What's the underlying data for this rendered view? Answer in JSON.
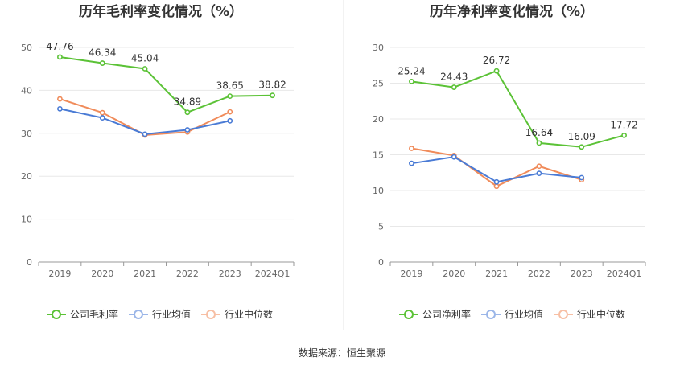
{
  "source_text": "数据来源：恒生聚源",
  "chart_data": [
    {
      "type": "line",
      "title": "历年毛利率变化情况（%）",
      "categories": [
        "2019",
        "2020",
        "2021",
        "2022",
        "2023",
        "2024Q1"
      ],
      "ylim": [
        0,
        50
      ],
      "yticks": [
        "0",
        "10",
        "20",
        "30",
        "40",
        "50"
      ],
      "legend_position": "bottom",
      "grid": true,
      "series": [
        {
          "name": "公司毛利率",
          "color": "#5bc236",
          "values": [
            47.76,
            46.34,
            45.04,
            34.89,
            38.65,
            38.82
          ],
          "labels": [
            "47.76",
            "46.34",
            "45.04",
            "34.89",
            "38.65",
            "38.82"
          ]
        },
        {
          "name": "行业均值",
          "color": "#4a7bd5",
          "values": [
            35.7,
            33.6,
            29.8,
            30.8,
            32.9,
            null
          ]
        },
        {
          "name": "行业中位数",
          "color": "#f08b5a",
          "values": [
            38.0,
            34.8,
            29.6,
            30.3,
            35.0,
            null
          ]
        }
      ]
    },
    {
      "type": "line",
      "title": "历年净利率变化情况（%）",
      "categories": [
        "2019",
        "2020",
        "2021",
        "2022",
        "2023",
        "2024Q1"
      ],
      "ylim": [
        0,
        30
      ],
      "yticks": [
        "0",
        "5",
        "10",
        "15",
        "20",
        "25",
        "30"
      ],
      "legend_position": "bottom",
      "grid": true,
      "series": [
        {
          "name": "公司净利率",
          "color": "#5bc236",
          "values": [
            25.24,
            24.43,
            26.72,
            16.64,
            16.09,
            17.72
          ],
          "labels": [
            "25.24",
            "24.43",
            "26.72",
            "16.64",
            "16.09",
            "17.72"
          ]
        },
        {
          "name": "行业均值",
          "color": "#4a7bd5",
          "values": [
            13.8,
            14.7,
            11.2,
            12.4,
            11.8,
            null
          ]
        },
        {
          "name": "行业中位数",
          "color": "#f08b5a",
          "values": [
            15.9,
            14.9,
            10.6,
            13.4,
            11.5,
            null
          ]
        }
      ]
    }
  ]
}
